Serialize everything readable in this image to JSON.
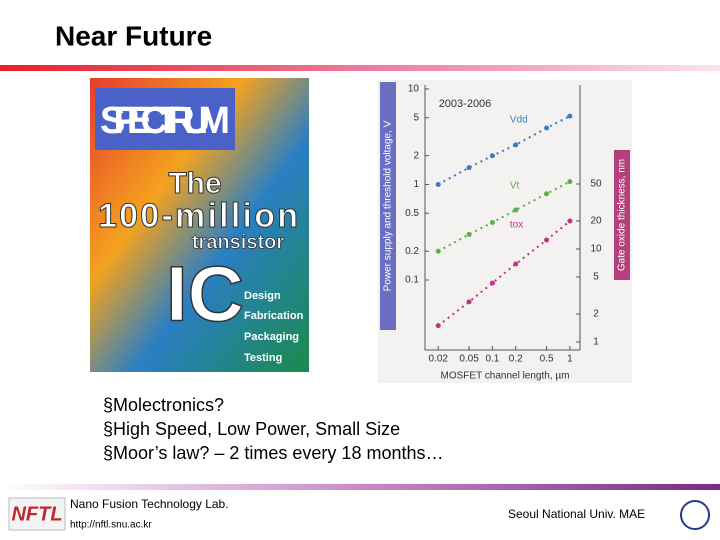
{
  "title": "Near Future",
  "cover": {
    "masthead": "SPECTRUM",
    "lines": [
      "The",
      "100-million",
      "transistor",
      "IC"
    ],
    "topics": [
      "Design",
      "Fabrication",
      "Packaging",
      "Testing"
    ]
  },
  "chart": {
    "type": "line",
    "annotation": "2003-2006",
    "xlabel": "MOSFET channel length, µm",
    "ylabel": "Power supply and threshold voltage, V",
    "y2label": "Gate oxide thickness, nm",
    "log": true,
    "x": [
      0.02,
      0.05,
      0.1,
      0.2,
      0.5,
      1
    ],
    "series": [
      {
        "name": "Vdd",
        "color": "#3a7bc8",
        "values": [
          1.0,
          1.5,
          2.0,
          2.6,
          3.9,
          5.2
        ]
      },
      {
        "name": "Vt",
        "color": "#5fae4a",
        "values": [
          0.2,
          0.3,
          0.4,
          0.54,
          0.8,
          1.07
        ]
      },
      {
        "name": "tox",
        "color": "#c0338a",
        "axis": "y2",
        "values": [
          1.5,
          2.7,
          4.3,
          6.9,
          12.5,
          20
        ]
      }
    ],
    "xlim": [
      0.0135,
      1.35
    ],
    "xticks": [
      0.02,
      0.05,
      0.1,
      0.2,
      0.5,
      1
    ],
    "ylim": [
      0.0185,
      11
    ],
    "yticks": [
      0.1,
      0.2,
      0.5,
      1,
      2,
      5,
      10
    ],
    "y2lim": [
      0.82,
      580
    ],
    "y2ticks": [
      1,
      2,
      5,
      10,
      20,
      50
    ]
  },
  "bullets": [
    "§Molectronics?",
    "§High Speed, Low Power, Small Size",
    "§Moor’s law? – 2 times every 18 months…"
  ],
  "footer": {
    "logo": "NFTL",
    "lab": "Nano Fusion Technology Lab.",
    "url": "http://nftl.snu.ac.kr",
    "university": "Seoul National Univ. MAE"
  }
}
